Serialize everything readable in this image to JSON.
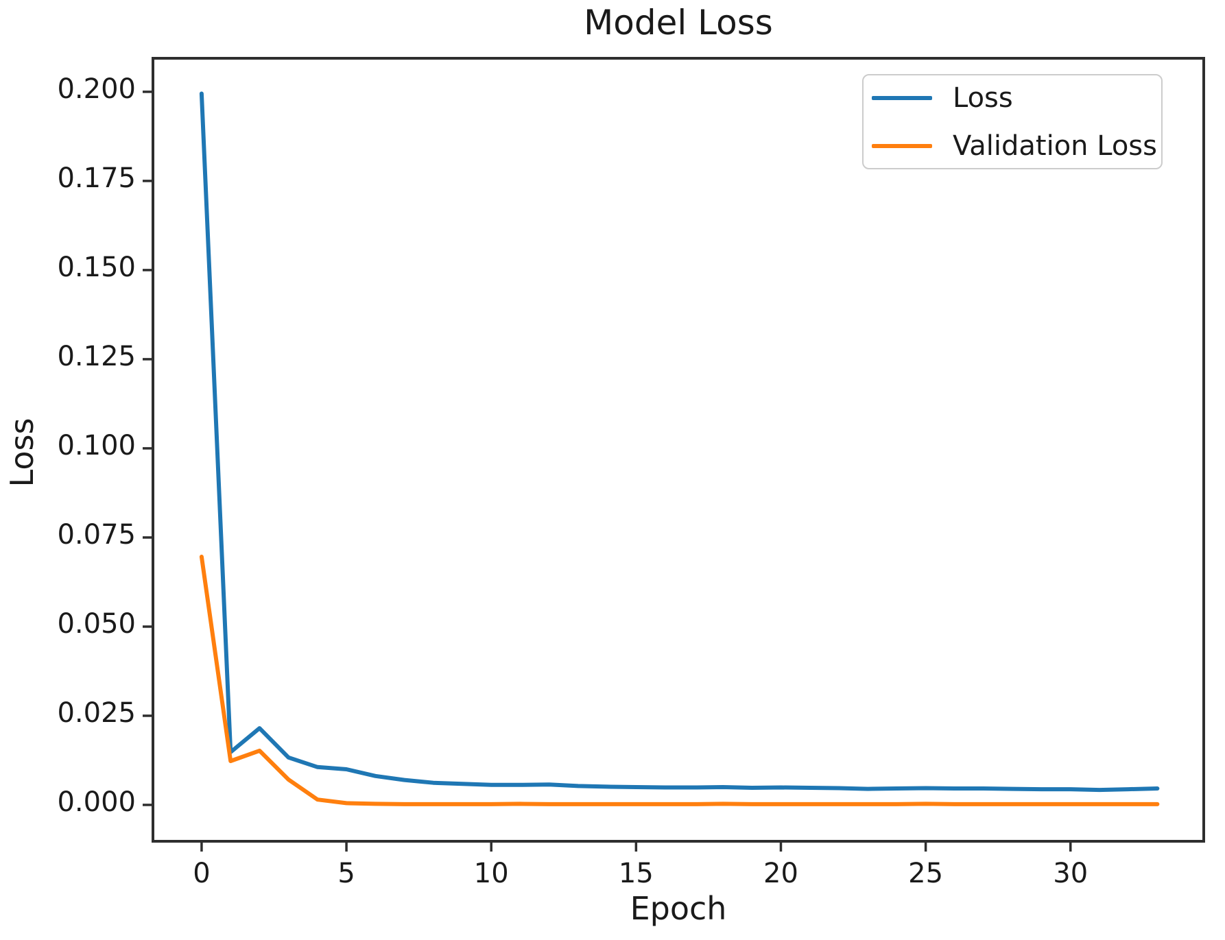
{
  "chart_data": {
    "type": "line",
    "title": "Model Loss",
    "xlabel": "Epoch",
    "ylabel": "Loss",
    "grid": false,
    "legend_position": "upper right",
    "xlim": [
      -1.68,
      34.6
    ],
    "ylim": [
      -0.0102,
      0.2094
    ],
    "x_ticks": [
      0,
      5,
      10,
      15,
      20,
      25,
      30
    ],
    "y_ticks": [
      0.0,
      0.025,
      0.05,
      0.075,
      0.1,
      0.125,
      0.15,
      0.175,
      0.2
    ],
    "y_tick_labels": [
      "0.000",
      "0.025",
      "0.050",
      "0.075",
      "0.100",
      "0.125",
      "0.150",
      "0.175",
      "0.200"
    ],
    "x": [
      0,
      1,
      2,
      3,
      4,
      5,
      6,
      7,
      8,
      9,
      10,
      11,
      12,
      13,
      14,
      15,
      16,
      17,
      18,
      19,
      20,
      21,
      22,
      23,
      24,
      25,
      26,
      27,
      28,
      29,
      30,
      31,
      32,
      33
    ],
    "series": [
      {
        "name": "Loss",
        "color": "#1f77b4",
        "values": [
          0.1995,
          0.0148,
          0.0215,
          0.0133,
          0.0106,
          0.01,
          0.0081,
          0.007,
          0.0062,
          0.0059,
          0.0056,
          0.0056,
          0.0057,
          0.0053,
          0.0051,
          0.005,
          0.0049,
          0.0049,
          0.005,
          0.0048,
          0.0049,
          0.0048,
          0.0047,
          0.0045,
          0.0046,
          0.0047,
          0.0046,
          0.0046,
          0.0045,
          0.0044,
          0.0044,
          0.0042,
          0.0044,
          0.0046
        ]
      },
      {
        "name": "Validation Loss",
        "color": "#ff7f0e",
        "values": [
          0.0696,
          0.0123,
          0.0152,
          0.0071,
          0.0015,
          0.0005,
          0.0003,
          0.0002,
          0.0002,
          0.0002,
          0.0002,
          0.0003,
          0.0002,
          0.0002,
          0.0002,
          0.0002,
          0.0002,
          0.0002,
          0.0003,
          0.0002,
          0.0002,
          0.0002,
          0.0002,
          0.0002,
          0.0002,
          0.0003,
          0.0002,
          0.0002,
          0.0002,
          0.0002,
          0.0002,
          0.0002,
          0.0002,
          0.0002
        ]
      }
    ]
  }
}
